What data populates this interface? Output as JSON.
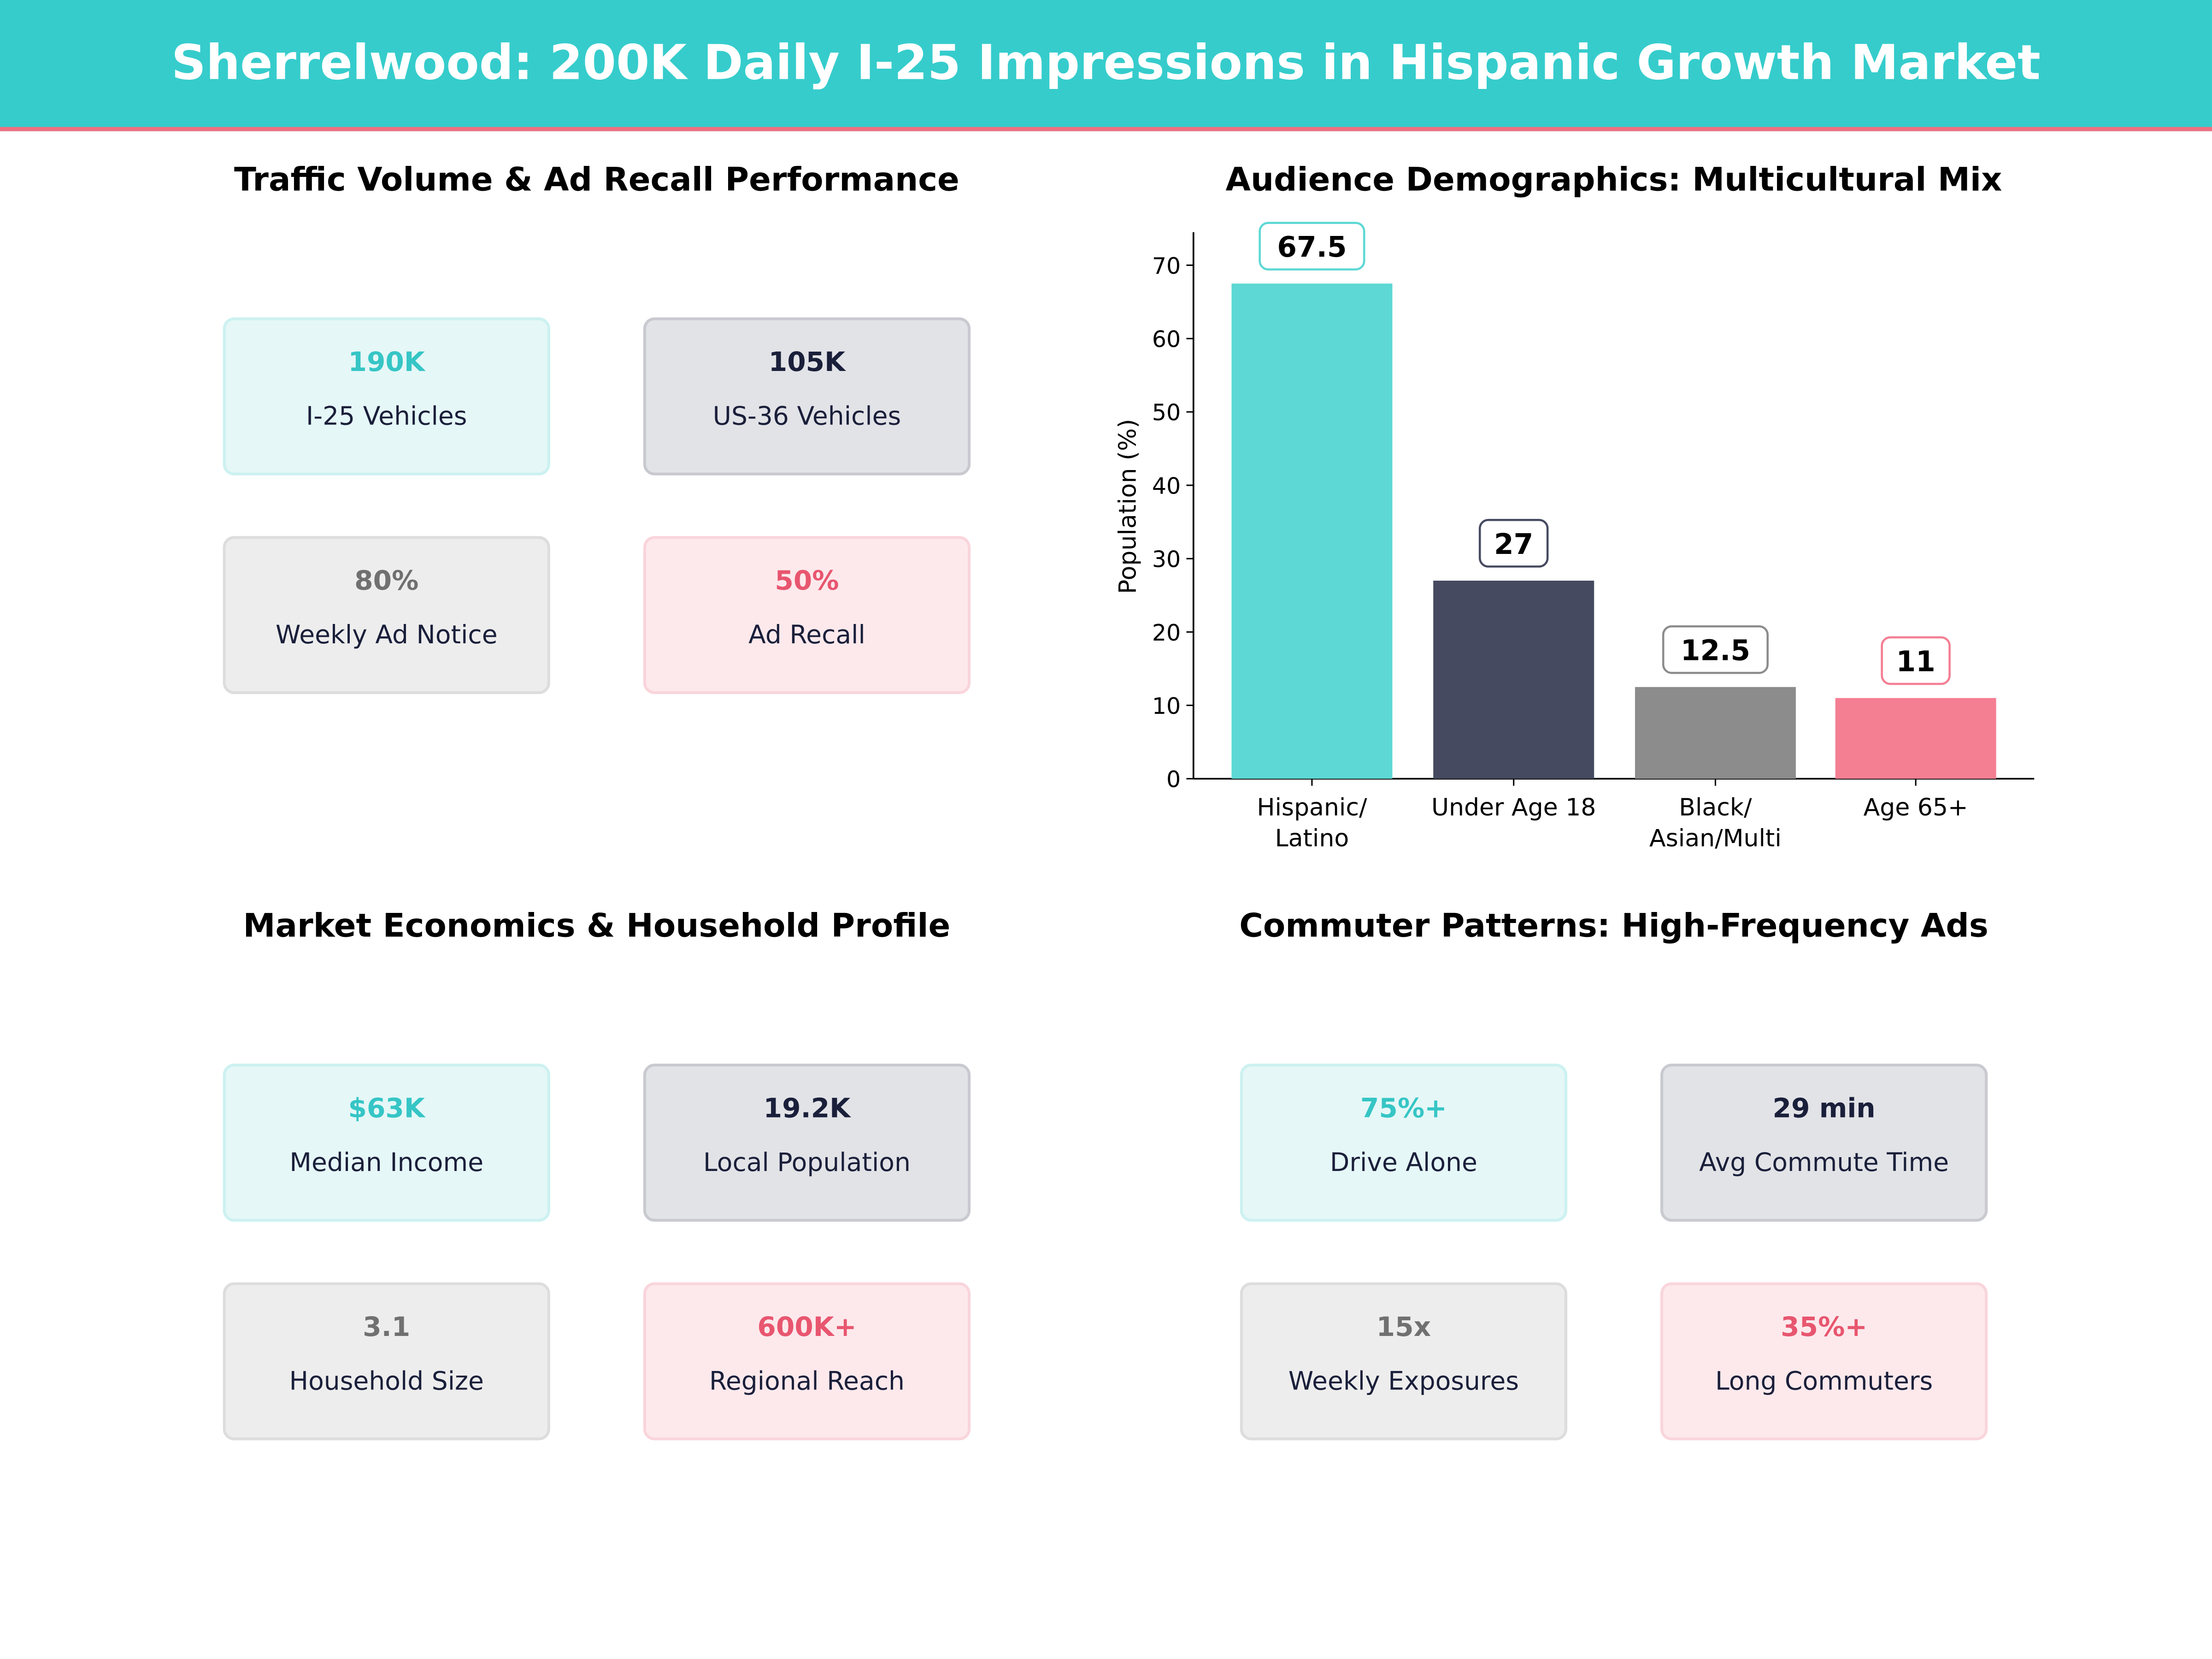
{
  "header": {
    "title": "Sherrelwood: 200K Daily I-25 Impressions in Hispanic Growth Market"
  },
  "panels": [
    {
      "title": "Traffic Volume & Ad Recall Performance",
      "cards": [
        {
          "value": "190K",
          "label": "I-25  Vehicles"
        },
        {
          "value": "105K",
          "label": "US-36  Vehicles"
        },
        {
          "value": "80%",
          "label": "Weekly Ad Notice"
        },
        {
          "value": "50%",
          "label": "Ad Recall"
        }
      ]
    },
    {
      "title": "Market Economics & Household Profile",
      "cards": [
        {
          "value": "$63K",
          "label": "Median Income"
        },
        {
          "value": "19.2K",
          "label": "Local Population"
        },
        {
          "value": "3.1",
          "label": "Household Size"
        },
        {
          "value": "600K+",
          "label": "Regional Reach"
        }
      ]
    },
    {
      "title": "Commuter Patterns: High-Frequency Ads",
      "cards": [
        {
          "value": "75%+",
          "label": "Drive Alone"
        },
        {
          "value": "29 min",
          "label": "Avg Commute Time"
        },
        {
          "value": "15x",
          "label": "Weekly Exposures"
        },
        {
          "value": "35%+",
          "label": "Long Commuters"
        }
      ]
    }
  ],
  "colors": {
    "teal": "#36CCCC",
    "navy": "#1A1F3A",
    "gray": "#707070",
    "pink": "#E8566F"
  },
  "chart_data": {
    "type": "bar",
    "title": "Audience Demographics: Multicultural Mix",
    "xlabel": "",
    "ylabel": "Population (%)",
    "categories": [
      "Hispanic/\nLatino",
      "Under Age 18",
      "Black/\nAsian/Multi",
      "Age 65+"
    ],
    "values": [
      67.5,
      27,
      12.5,
      11
    ],
    "data_labels": [
      "67.5",
      "27",
      "12.5",
      "11"
    ],
    "colors": [
      "#5DD8D4",
      "#464A60",
      "#8C8C8C",
      "#F47E92"
    ],
    "yticks": [
      "0",
      "10",
      "20",
      "30",
      "40",
      "50",
      "60",
      "70"
    ],
    "ylim": [
      0,
      74.5
    ],
    "grid": false
  }
}
